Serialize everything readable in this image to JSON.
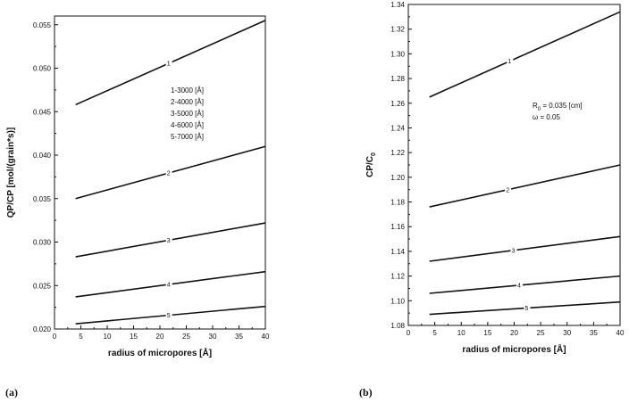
{
  "chart_data": [
    {
      "type": "line",
      "panel_label": "(a)",
      "xlabel": "radius of micropores [Å]",
      "ylabel": "QP/CP [mol/(grain*s)]",
      "xlim": [
        0,
        40
      ],
      "ylim": [
        0.02,
        0.056
      ],
      "x_ticks": [
        "0",
        "5",
        "10",
        "15",
        "20",
        "25",
        "30",
        "35",
        "40"
      ],
      "y_ticks": [
        "0.020",
        "0.025",
        "0.030",
        "0.035",
        "0.040",
        "0.045",
        "0.050",
        "0.055"
      ],
      "legend_text": [
        "1-3000 [Å]",
        "2-4000 [Å]",
        "3-5000 [Å]",
        "4-6000 [Å]",
        "5-7000 [Å]"
      ],
      "series": [
        {
          "name": "1",
          "x": [
            4,
            40
          ],
          "y": [
            0.0458,
            0.0555
          ]
        },
        {
          "name": "2",
          "x": [
            4,
            40
          ],
          "y": [
            0.035,
            0.041
          ]
        },
        {
          "name": "3",
          "x": [
            4,
            40
          ],
          "y": [
            0.0283,
            0.0322
          ]
        },
        {
          "name": "4",
          "x": [
            4,
            40
          ],
          "y": [
            0.0237,
            0.0266
          ]
        },
        {
          "name": "5",
          "x": [
            4,
            40
          ],
          "y": [
            0.0206,
            0.0226
          ]
        }
      ]
    },
    {
      "type": "line",
      "panel_label": "(b)",
      "xlabel": "radius of micropores [Å]",
      "ylabel": "CP/C",
      "ylabel_sub": "0",
      "xlim": [
        0,
        40
      ],
      "ylim": [
        1.08,
        1.34
      ],
      "x_ticks": [
        "0",
        "5",
        "10",
        "15",
        "20",
        "25",
        "30",
        "35",
        "40"
      ],
      "y_ticks": [
        "1.08",
        "1.10",
        "1.12",
        "1.14",
        "1.16",
        "1.18",
        "1.20",
        "1.22",
        "1.24",
        "1.26",
        "1.28",
        "1.30",
        "1.32",
        "1.34"
      ],
      "annotation": {
        "r_main": "R",
        "r_sub": "0",
        "r_rest": " = 0.035 [cm]",
        "omega": "ω = 0.05"
      },
      "series": [
        {
          "name": "1",
          "x": [
            4,
            40
          ],
          "y": [
            1.265,
            1.334
          ]
        },
        {
          "name": "2",
          "x": [
            4,
            40
          ],
          "y": [
            1.176,
            1.21
          ]
        },
        {
          "name": "3",
          "x": [
            4,
            40
          ],
          "y": [
            1.132,
            1.152
          ]
        },
        {
          "name": "4",
          "x": [
            4,
            40
          ],
          "y": [
            1.106,
            1.12
          ]
        },
        {
          "name": "5",
          "x": [
            4,
            40
          ],
          "y": [
            1.089,
            1.099
          ]
        }
      ]
    }
  ]
}
